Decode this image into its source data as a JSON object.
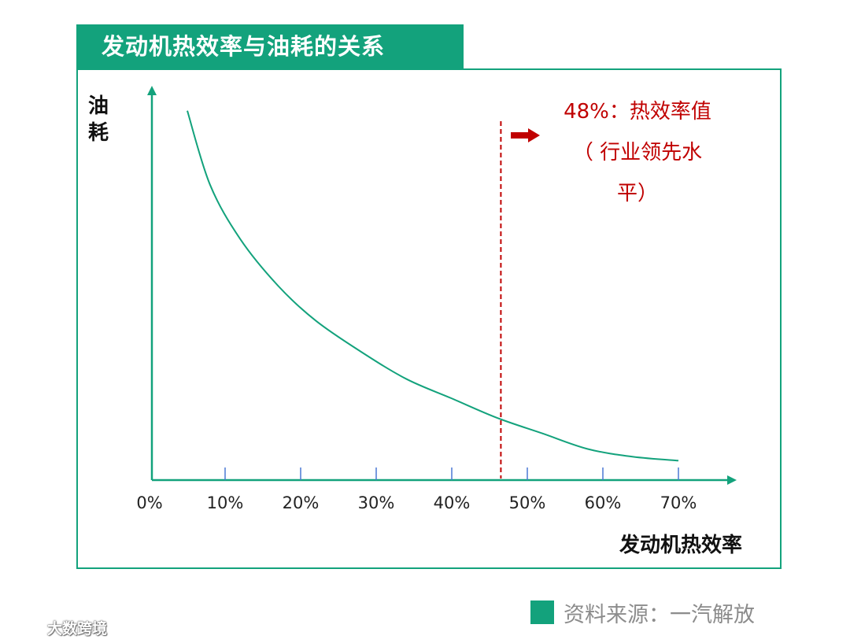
{
  "title": "发动机热效率与油耗的关系",
  "annotation": {
    "line1": "48%：热效率值",
    "line2": "（ 行业领先水",
    "line3": "平）"
  },
  "source": "资料来源：一汽解放",
  "watermark": "大数跨境",
  "colors": {
    "accent": "#13a27c",
    "annotation": "#c00000",
    "tick": "#4a78d4"
  },
  "chart_data": {
    "type": "line",
    "xlabel": "发动机热效率",
    "ylabel": "油耗",
    "x_tick_labels": [
      "0%",
      "10%",
      "20%",
      "30%",
      "40%",
      "50%",
      "60%",
      "70%"
    ],
    "x_ticks": [
      0,
      10,
      20,
      30,
      40,
      50,
      60,
      70
    ],
    "xlim": [
      0,
      70
    ],
    "ylim": [
      0,
      100
    ],
    "y_axis_values_shown": false,
    "series": [
      {
        "x": [
          5,
          8,
          12,
          17,
          22,
          28,
          34,
          40,
          46,
          52,
          58,
          64,
          70
        ],
        "y": [
          95,
          76,
          62,
          50,
          41,
          33,
          26,
          21,
          16,
          12,
          8,
          6,
          5
        ]
      }
    ],
    "reference_line": {
      "x": 46.5,
      "style": "dashed",
      "color": "#c00000"
    },
    "grid": false,
    "legend": "none"
  }
}
